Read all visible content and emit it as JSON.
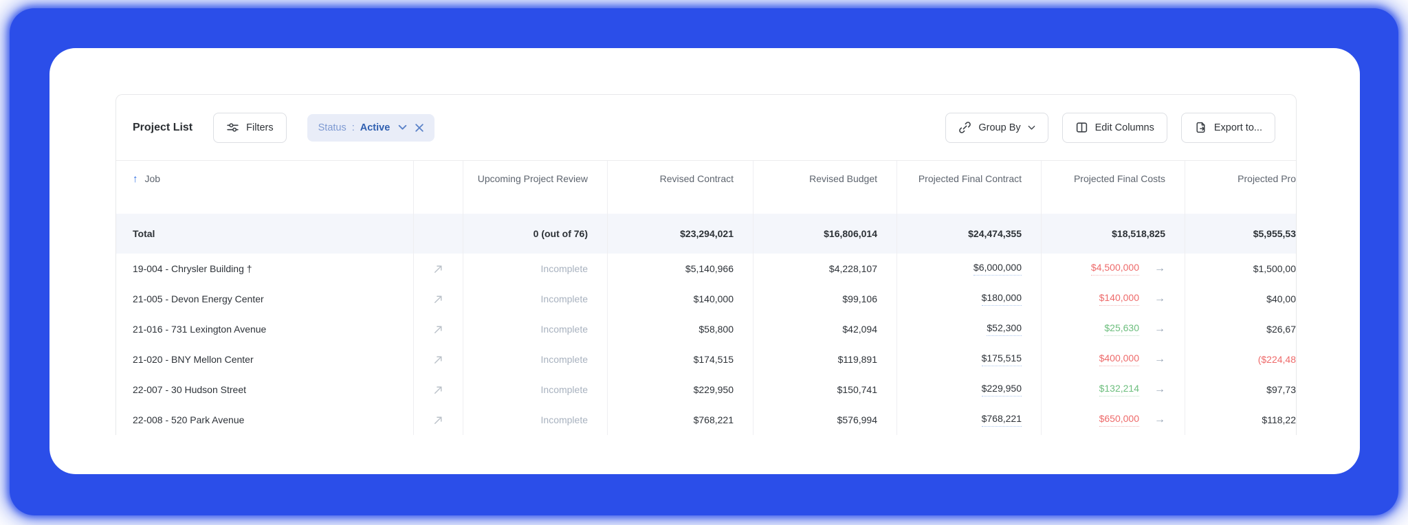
{
  "toolbar": {
    "title": "Project List",
    "filters_label": "Filters",
    "filter_chip": {
      "field": "Status",
      "separator": ":",
      "value": "Active"
    },
    "group_by_label": "Group By",
    "edit_columns_label": "Edit Columns",
    "export_label": "Export to..."
  },
  "table": {
    "columns": [
      {
        "key": "job",
        "label": "Job",
        "sortable": true,
        "sort_direction": "asc"
      },
      {
        "key": "link",
        "label": ""
      },
      {
        "key": "review",
        "label": "Upcoming Project Review"
      },
      {
        "key": "revised_contract",
        "label": "Revised Contract"
      },
      {
        "key": "revised_budget",
        "label": "Revised Budget"
      },
      {
        "key": "projected_final_contract",
        "label": "Projected Final Contract"
      },
      {
        "key": "projected_final_costs",
        "label": "Projected Final Costs"
      },
      {
        "key": "projected_profit",
        "label": "Projected Pro"
      }
    ],
    "total_row": {
      "job": "Total",
      "review": "0 (out of 76)",
      "revised_contract": "$23,294,021",
      "revised_budget": "$16,806,014",
      "projected_final_contract": "$24,474,355",
      "projected_final_costs": "$18,518,825",
      "projected_profit": "$5,955,53"
    },
    "rows": [
      {
        "job": "19-004 - Chrysler Building †",
        "review": "Incomplete",
        "revised_contract": "$5,140,966",
        "revised_budget": "$4,228,107",
        "projected_final_contract": "$6,000,000",
        "projected_final_costs": {
          "value": "$4,500,000",
          "trend": "negative"
        },
        "projected_profit": {
          "value": "$1,500,00",
          "negative": false
        }
      },
      {
        "job": "21-005 - Devon Energy Center",
        "review": "Incomplete",
        "revised_contract": "$140,000",
        "revised_budget": "$99,106",
        "projected_final_contract": "$180,000",
        "projected_final_costs": {
          "value": "$140,000",
          "trend": "negative"
        },
        "projected_profit": {
          "value": "$40,00",
          "negative": false
        }
      },
      {
        "job": "21-016 - 731 Lexington Avenue",
        "review": "Incomplete",
        "revised_contract": "$58,800",
        "revised_budget": "$42,094",
        "projected_final_contract": "$52,300",
        "projected_final_costs": {
          "value": "$25,630",
          "trend": "positive"
        },
        "projected_profit": {
          "value": "$26,67",
          "negative": false
        }
      },
      {
        "job": "21-020 - BNY Mellon Center",
        "review": "Incomplete",
        "revised_contract": "$174,515",
        "revised_budget": "$119,891",
        "projected_final_contract": "$175,515",
        "projected_final_costs": {
          "value": "$400,000",
          "trend": "negative"
        },
        "projected_profit": {
          "value": "($224,48",
          "negative": true
        }
      },
      {
        "job": "22-007 - 30 Hudson Street",
        "review": "Incomplete",
        "revised_contract": "$229,950",
        "revised_budget": "$150,741",
        "projected_final_contract": "$229,950",
        "projected_final_costs": {
          "value": "$132,214",
          "trend": "positive"
        },
        "projected_profit": {
          "value": "$97,73",
          "negative": false
        }
      },
      {
        "job": "22-008 - 520 Park Avenue",
        "review": "Incomplete",
        "revised_contract": "$768,221",
        "revised_budget": "$576,994",
        "projected_final_contract": "$768,221",
        "projected_final_costs": {
          "value": "$650,000",
          "trend": "negative"
        },
        "projected_profit": {
          "value": "$118,22",
          "negative": false
        }
      }
    ]
  },
  "icons": {
    "filters": "sliders-icon",
    "chip_open": "chevron-down-icon",
    "chip_remove": "close-icon",
    "group_by": "chain-link-icon",
    "group_by_open": "chevron-down-icon",
    "edit_columns": "split-columns-icon",
    "export": "file-export-icon",
    "sort_asc": "arrow-up-icon",
    "row_open": "external-link-arrow-icon",
    "cost_trend": "arrow-right-icon"
  },
  "colors": {
    "frame_blue": "#2b4ee9",
    "chip_bg": "#e9edf8",
    "chip_field_text": "#7e9ad2",
    "chip_value_text": "#2f5fb0",
    "sort_arrow_blue": "#2b6ce0",
    "negative_red": "#ee6a6a",
    "positive_green": "#6cbe7d",
    "muted_text": "#a8b2bf",
    "editable_underline_blue": "#a8c4ec",
    "total_row_bg": "#f4f6fb"
  }
}
